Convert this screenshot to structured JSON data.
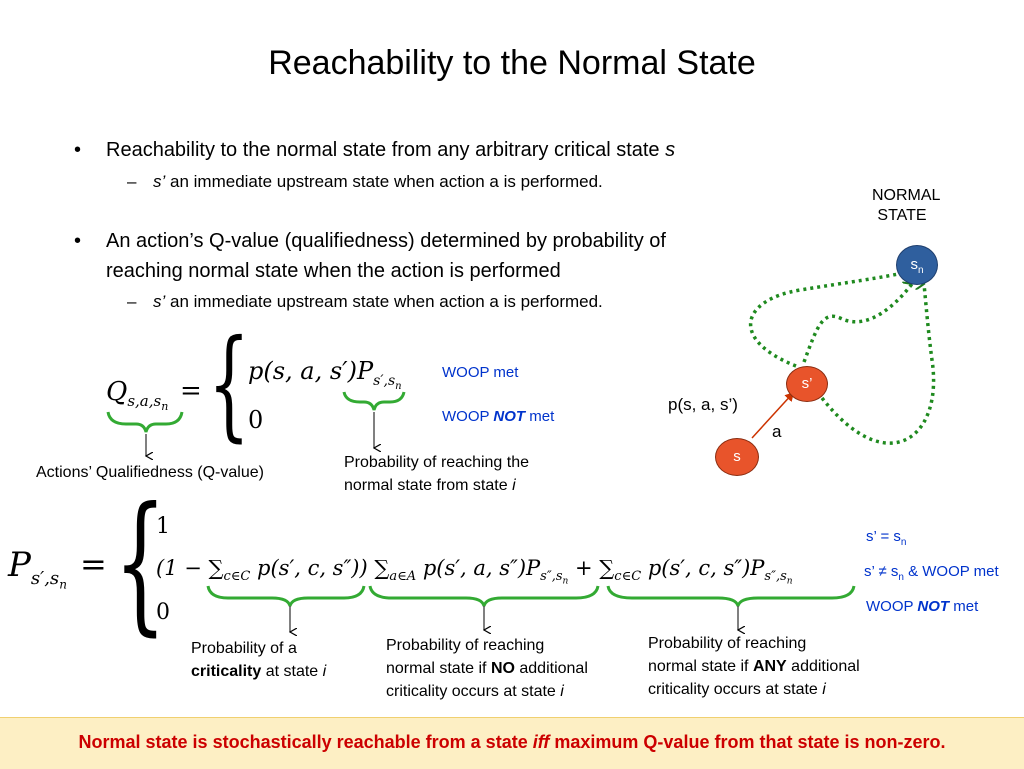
{
  "title": "Reachability to the Normal State",
  "bullets": [
    {
      "text": "Reachability to the normal state from any arbitrary critical state ",
      "var": "s"
    },
    {
      "sub_var": "s’",
      "sub_text": " an immediate upstream state when action a is performed."
    },
    {
      "line1": "An action’s Q-value (qualifiedness) determined by probability of",
      "line2": "reaching normal state when the action is performed"
    },
    {
      "sub_var": "s’",
      "sub_text": " an immediate upstream state when action a is performed."
    }
  ],
  "q_formula": {
    "lhs": "Q",
    "lhs_sub": "s,a,s",
    "lhs_subsub": "n",
    "equals": "=",
    "case1_a": "p(s, a, s′)P",
    "case1_sub": "s′,s",
    "case1_subsub": "n",
    "case2": "0",
    "cond1": "WOOP met",
    "cond2_pre": "WOOP ",
    "cond2_not": "NOT",
    "cond2_post": " met",
    "label_q": "Actions’ Qualifiedness (Q-value)",
    "label_p1": "Probability of reaching the",
    "label_p2": "normal state from state ",
    "label_p_var": "i"
  },
  "p_formula": {
    "lhs": "P",
    "lhs_sub": "s′,s",
    "lhs_subsub": "n",
    "equals": "=",
    "case1": "1",
    "case2_a": "(1 − ",
    "sum1": "∑",
    "sum1_sub": "c∈C",
    "case2_b": " p(s′, c, s″))",
    "sum2": "∑",
    "sum2_sub": "a∈A",
    "case2_c": " p(s′, a, s″)P",
    "case2_c_sub": "s″,s",
    "case2_c_subsub": "n",
    "plus": "+",
    "sum3": "∑",
    "sum3_sub": "c∈C",
    "case2_d": " p(s′, c, s″)P",
    "case2_d_sub": "s″,s",
    "case2_d_subsub": "n",
    "case3": "0",
    "cond1": "s’ = s",
    "cond1_sub": "n",
    "cond2_a": "s’ ≠ s",
    "cond2_sub": "n",
    "cond2_b": " & WOOP met",
    "cond3_pre": "WOOP ",
    "cond3_not": "NOT",
    "cond3_post": " met",
    "label1_a": "Probability of a",
    "label1_b": "criticality",
    "label1_c": " at state ",
    "label1_var": "i",
    "label2_a": "Probability of reaching",
    "label2_b": "normal state if ",
    "label2_bold": "NO",
    "label2_c": " additional",
    "label2_d": "criticality occurs at state ",
    "label2_var": "i",
    "label3_a": "Probability of reaching",
    "label3_b": "normal state if ",
    "label3_bold": "ANY",
    "label3_c": " additional",
    "label3_d": "criticality occurs at state ",
    "label3_var": "i"
  },
  "graph": {
    "normal_label_1": "NORMAL",
    "normal_label_2": "STATE",
    "node_sn": "s",
    "node_sn_sub": "n",
    "node_sprime": "s’",
    "node_s": "s",
    "edge_prob": "p(s, a, s’)",
    "edge_action": "a",
    "colors": {
      "node_fill": "#e8542b",
      "node_sn_fill": "#2f5f9e",
      "arrow": "#1f7a1f",
      "brace": "#33aa33"
    }
  },
  "footer": {
    "pre": "Normal state is stochastically reachable from a state ",
    "iff": "iff",
    "post": " maximum Q-value from that state is non-zero."
  }
}
